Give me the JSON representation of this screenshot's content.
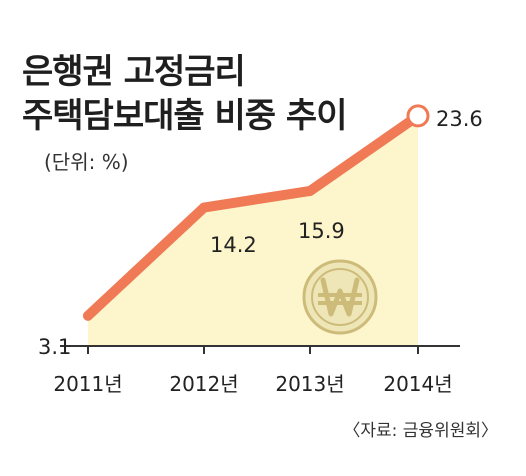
{
  "title_line1": "은행권 고정금리",
  "title_line2": "주택담보대출 비중 추이",
  "unit": "(단위: %)",
  "source": "〈자료: 금융위원회〉",
  "watermark_icon": "won-coin-icon",
  "colors": {
    "line": "#f07a55",
    "area": "#fdf6cc",
    "axis": "#333333",
    "coin_fill": "#efe6b8",
    "coin_ring": "#cdbb7a"
  },
  "chart_data": {
    "type": "area",
    "categories": [
      "2011년",
      "2012년",
      "2013년",
      "2014년"
    ],
    "values": [
      3.1,
      14.2,
      15.9,
      23.6
    ],
    "value_labels": [
      "3.1",
      "14.2",
      "15.9",
      "23.6"
    ],
    "title": "은행권 고정금리 주택담보대출 비중 추이",
    "ylabel": "(단위: %)",
    "ylim": [
      0,
      26
    ],
    "grid": false,
    "legend": "none"
  }
}
